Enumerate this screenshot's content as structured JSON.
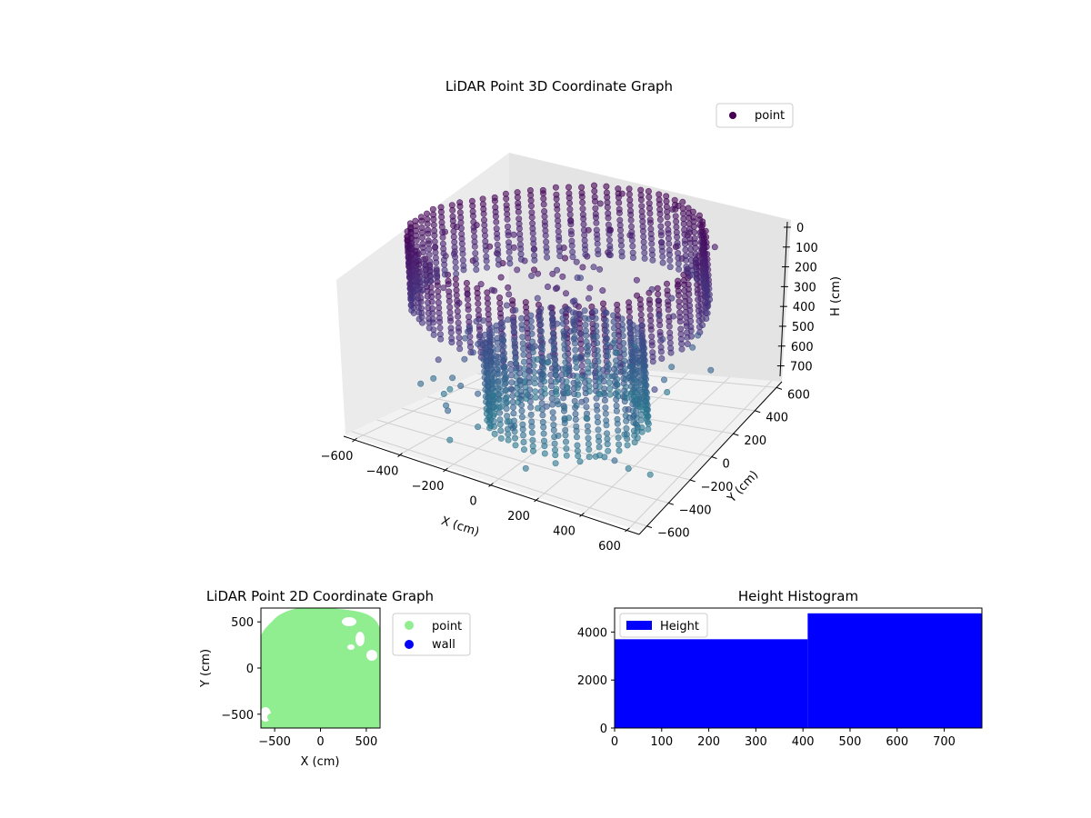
{
  "chart_data": [
    {
      "type": "scatter",
      "title": "LiDAR Point 3D Coordinate Graph",
      "xlabel": "X (cm)",
      "ylabel": "Y (cm)",
      "zlabel": "H (cm)",
      "xticks": [
        "−600",
        "−400",
        "−200",
        "0",
        "200",
        "400",
        "600"
      ],
      "yticks": [
        "−600",
        "−400",
        "−200",
        "0",
        "200",
        "400",
        "600"
      ],
      "zticks": [
        "0",
        "100",
        "200",
        "300",
        "400",
        "500",
        "600",
        "700"
      ],
      "xlim": [
        -650,
        650
      ],
      "ylim": [
        -650,
        650
      ],
      "zlim": [
        0,
        780
      ],
      "z_axis_inverted": true,
      "grid": true,
      "legend": {
        "position": "top-right",
        "entries": [
          "point"
        ]
      },
      "series": [
        {
          "name": "point",
          "color_map": "viridis (by height)",
          "structure": "circular scan: outer wall ring radius ~600 cm and inner ring radius ~320 cm; points span height 0–780 cm"
        }
      ]
    },
    {
      "type": "scatter",
      "title": "LiDAR Point 2D Coordinate Graph",
      "xlabel": "X (cm)",
      "ylabel": "Y (cm)",
      "xticks": [
        "−500",
        "0",
        "500"
      ],
      "yticks": [
        "−500",
        "0",
        "500"
      ],
      "xlim": [
        -650,
        650
      ],
      "ylim": [
        -650,
        650
      ],
      "legend": {
        "position": "outside-right",
        "entries": [
          "point",
          "wall"
        ]
      },
      "series": [
        {
          "name": "point",
          "color": "#90ee90"
        },
        {
          "name": "wall",
          "color": "#0000ff"
        }
      ]
    },
    {
      "type": "bar",
      "title": "Height Histogram",
      "xticks": [
        "0",
        "100",
        "200",
        "300",
        "400",
        "500",
        "600",
        "700"
      ],
      "yticks": [
        "0",
        "2000",
        "4000"
      ],
      "xlim": [
        0,
        780
      ],
      "ylim": [
        0,
        5000
      ],
      "legend": {
        "position": "top-left",
        "entries": [
          "Height"
        ]
      },
      "series": [
        {
          "name": "Height",
          "color": "#0000ff",
          "bins": [
            {
              "x0": 0,
              "x1": 410,
              "count": 3700
            },
            {
              "x0": 410,
              "x1": 780,
              "count": 4780
            }
          ]
        }
      ]
    }
  ]
}
